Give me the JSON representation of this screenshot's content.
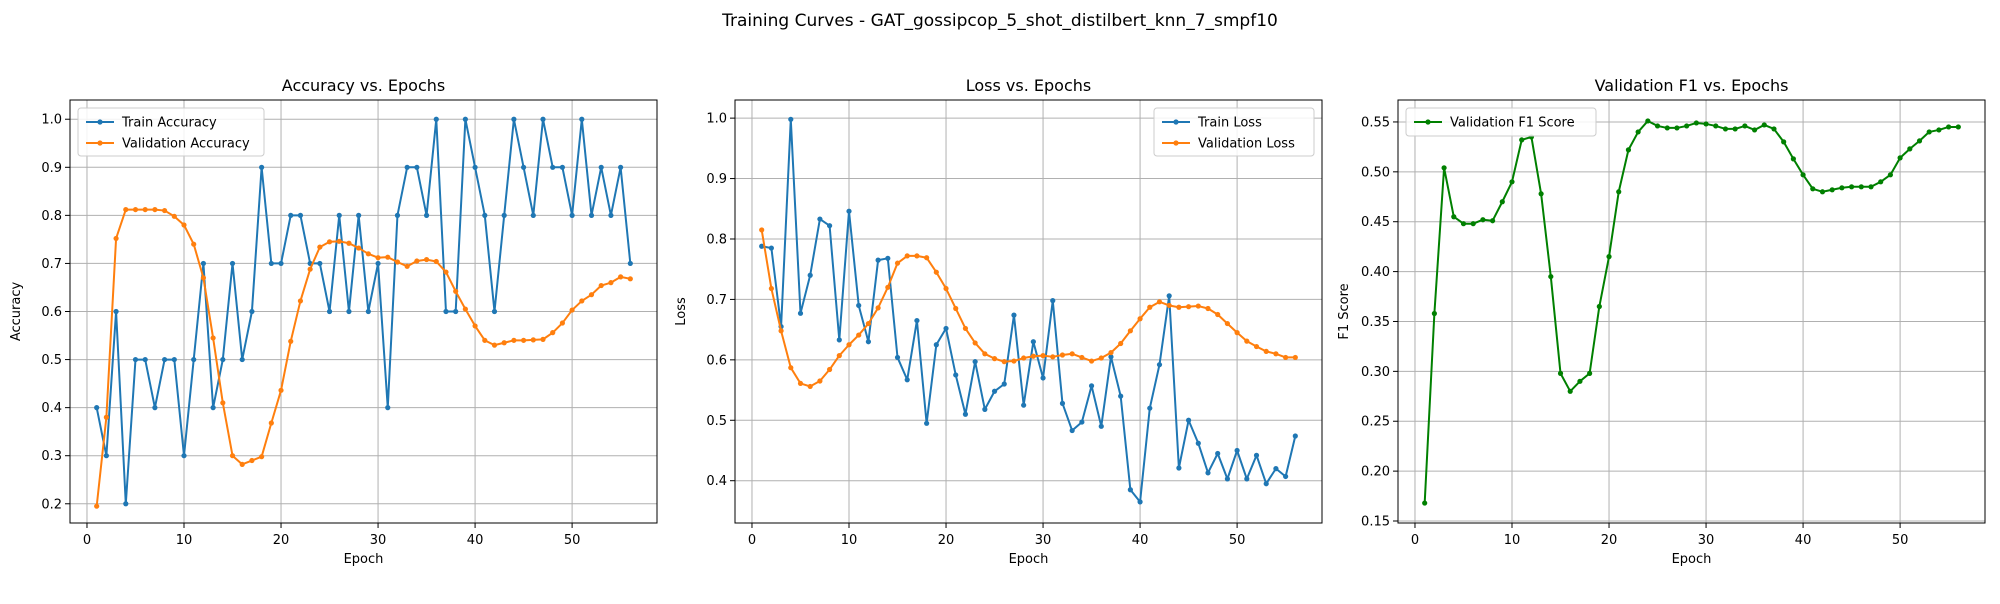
{
  "figure_title": "Training Curves - GAT_gossipcop_5_shot_distilbert_knn_7_smpf10",
  "colors": {
    "blue": "#1f77b4",
    "orange": "#ff7f0e",
    "green": "#008000",
    "grid": "#b0b0b0"
  },
  "chart_data": [
    {
      "type": "line",
      "title": "Accuracy vs. Epochs",
      "xlabel": "Epoch",
      "ylabel": "Accuracy",
      "xlim": [
        -1.75,
        58.75
      ],
      "ylim": [
        0.16,
        1.04
      ],
      "xticks": [
        0,
        10,
        20,
        30,
        40,
        50
      ],
      "yticks": [
        0.2,
        0.3,
        0.4,
        0.5,
        0.6,
        0.7,
        0.8,
        0.9,
        1.0
      ],
      "ytick_labels": [
        "0.2",
        "0.3",
        "0.4",
        "0.5",
        "0.6",
        "0.7",
        "0.8",
        "0.9",
        "1.0"
      ],
      "grid": true,
      "legend": "upper-left",
      "series": [
        {
          "name": "Train Accuracy",
          "color": "#1f77b4",
          "values": [
            0.4,
            0.3,
            0.6,
            0.2,
            0.5,
            0.5,
            0.4,
            0.5,
            0.5,
            0.3,
            0.5,
            0.7,
            0.4,
            0.5,
            0.7,
            0.5,
            0.6,
            0.9,
            0.7,
            0.7,
            0.8,
            0.8,
            0.7,
            0.7,
            0.6,
            0.8,
            0.6,
            0.8,
            0.6,
            0.7,
            0.4,
            0.8,
            0.9,
            0.9,
            0.8,
            1.0,
            0.6,
            0.6,
            1.0,
            0.9,
            0.8,
            0.6,
            0.8,
            1.0,
            0.9,
            0.8,
            1.0,
            0.9,
            0.9,
            0.8,
            1.0,
            0.8,
            0.9,
            0.8,
            0.9,
            0.7
          ]
        },
        {
          "name": "Validation Accuracy",
          "color": "#ff7f0e",
          "values": [
            0.195,
            0.38,
            0.752,
            0.812,
            0.812,
            0.812,
            0.812,
            0.81,
            0.798,
            0.78,
            0.74,
            0.67,
            0.545,
            0.41,
            0.3,
            0.282,
            0.29,
            0.298,
            0.368,
            0.436,
            0.538,
            0.622,
            0.688,
            0.734,
            0.745,
            0.746,
            0.742,
            0.732,
            0.72,
            0.712,
            0.713,
            0.703,
            0.694,
            0.705,
            0.708,
            0.704,
            0.682,
            0.642,
            0.605,
            0.57,
            0.54,
            0.53,
            0.535,
            0.54,
            0.54,
            0.541,
            0.542,
            0.556,
            0.576,
            0.603,
            0.622,
            0.635,
            0.654,
            0.66,
            0.672,
            0.668
          ]
        }
      ]
    },
    {
      "type": "line",
      "title": "Loss vs. Epochs",
      "xlabel": "Epoch",
      "ylabel": "Loss",
      "xlim": [
        -1.75,
        58.75
      ],
      "ylim": [
        0.33,
        1.03
      ],
      "xticks": [
        0,
        10,
        20,
        30,
        40,
        50
      ],
      "yticks": [
        0.4,
        0.5,
        0.6,
        0.7,
        0.8,
        0.9,
        1.0
      ],
      "ytick_labels": [
        "0.4",
        "0.5",
        "0.6",
        "0.7",
        "0.8",
        "0.9",
        "1.0"
      ],
      "grid": true,
      "legend": "upper-right",
      "series": [
        {
          "name": "Train Loss",
          "color": "#1f77b4",
          "values": [
            0.788,
            0.785,
            0.655,
            0.998,
            0.677,
            0.74,
            0.833,
            0.822,
            0.633,
            0.846,
            0.69,
            0.63,
            0.765,
            0.768,
            0.604,
            0.567,
            0.665,
            0.495,
            0.625,
            0.652,
            0.575,
            0.51,
            0.597,
            0.518,
            0.548,
            0.56,
            0.674,
            0.525,
            0.63,
            0.57,
            0.698,
            0.528,
            0.483,
            0.497,
            0.557,
            0.49,
            0.605,
            0.54,
            0.385,
            0.365,
            0.52,
            0.592,
            0.706,
            0.421,
            0.5,
            0.462,
            0.413,
            0.445,
            0.403,
            0.45,
            0.403,
            0.442,
            0.395,
            0.42,
            0.407,
            0.474
          ]
        },
        {
          "name": "Validation Loss",
          "color": "#ff7f0e",
          "values": [
            0.815,
            0.718,
            0.648,
            0.587,
            0.561,
            0.556,
            0.565,
            0.584,
            0.607,
            0.625,
            0.641,
            0.66,
            0.686,
            0.72,
            0.76,
            0.772,
            0.772,
            0.769,
            0.745,
            0.718,
            0.685,
            0.652,
            0.628,
            0.61,
            0.602,
            0.597,
            0.598,
            0.603,
            0.606,
            0.607,
            0.605,
            0.608,
            0.61,
            0.604,
            0.598,
            0.603,
            0.612,
            0.627,
            0.648,
            0.668,
            0.687,
            0.696,
            0.69,
            0.687,
            0.688,
            0.689,
            0.685,
            0.675,
            0.66,
            0.645,
            0.631,
            0.622,
            0.614,
            0.61,
            0.604,
            0.604
          ]
        }
      ]
    },
    {
      "type": "line",
      "title": "Validation F1 vs. Epochs",
      "xlabel": "Epoch",
      "ylabel": "F1 Score",
      "xlim": [
        -1.75,
        58.75
      ],
      "ylim": [
        0.148,
        0.572
      ],
      "xticks": [
        0,
        10,
        20,
        30,
        40,
        50
      ],
      "yticks": [
        0.15,
        0.2,
        0.25,
        0.3,
        0.35,
        0.4,
        0.45,
        0.5,
        0.55
      ],
      "ytick_labels": [
        "0.15",
        "0.20",
        "0.25",
        "0.30",
        "0.35",
        "0.40",
        "0.45",
        "0.50",
        "0.55"
      ],
      "grid": true,
      "legend": "upper-left",
      "series": [
        {
          "name": "Validation F1 Score",
          "color": "#008000",
          "values": [
            0.168,
            0.358,
            0.504,
            0.455,
            0.448,
            0.448,
            0.452,
            0.451,
            0.47,
            0.49,
            0.532,
            0.535,
            0.478,
            0.395,
            0.298,
            0.28,
            0.29,
            0.298,
            0.365,
            0.415,
            0.48,
            0.522,
            0.54,
            0.551,
            0.546,
            0.544,
            0.544,
            0.546,
            0.549,
            0.548,
            0.546,
            0.543,
            0.543,
            0.546,
            0.542,
            0.547,
            0.543,
            0.53,
            0.513,
            0.497,
            0.483,
            0.48,
            0.482,
            0.484,
            0.485,
            0.485,
            0.485,
            0.49,
            0.497,
            0.514,
            0.523,
            0.531,
            0.54,
            0.542,
            0.545,
            0.545
          ]
        }
      ]
    }
  ]
}
